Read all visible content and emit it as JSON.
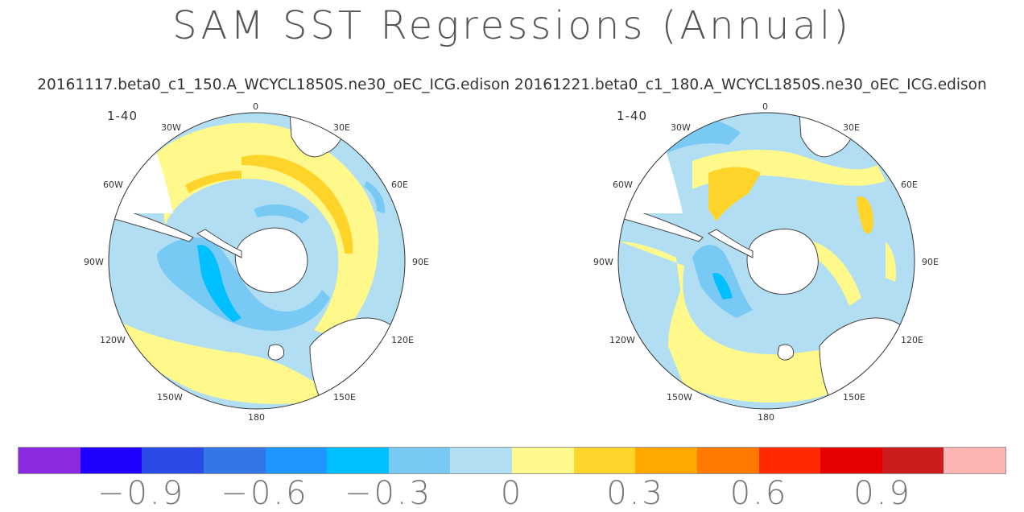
{
  "title": "SAM SST Regressions (Annual)",
  "subtitle": "20161117.beta0_c1_150.A_WCYCL1850S.ne30_oEC_ICG.edison 20161221.beta0_c1_180.A_WCYCL1850S.ne30_oEC_ICG.edison",
  "panels": [
    {
      "period": "1-40",
      "lon_labels": {
        "0": "0",
        "30E": "30E",
        "60E": "60E",
        "90E": "90E",
        "120E": "120E",
        "150E": "150E",
        "180": "180",
        "150W": "150W",
        "120W": "120W",
        "90W": "90W",
        "60W": "60W",
        "30W": "30W"
      }
    },
    {
      "period": "1-40",
      "lon_labels": {
        "0": "0",
        "30E": "30E",
        "60E": "60E",
        "90E": "90E",
        "120E": "120E",
        "150E": "150E",
        "180": "180",
        "150W": "150W",
        "120W": "120W",
        "90W": "90W",
        "60W": "60W",
        "30W": "30W"
      }
    }
  ],
  "colorbar": {
    "colors": [
      "#8a2be2",
      "#1e00ff",
      "#2c4be6",
      "#3376e6",
      "#1f96ff",
      "#00c0ff",
      "#78c9f4",
      "#b2def3",
      "#fff98c",
      "#ffd42a",
      "#ffa800",
      "#ff7a00",
      "#ff2a00",
      "#e60000",
      "#cc1b1b",
      "#ffb4b4"
    ],
    "tick_labels": [
      "-0.9",
      "-0.6",
      "-0.3",
      "0",
      "0.3",
      "0.6",
      "0.9"
    ]
  },
  "colors": {
    "weak_negative": "#b2def3",
    "moderate_negative": "#78c9f4",
    "strong_negative": "#00c0ff",
    "weak_positive": "#fff98c",
    "moderate_positive": "#ffd42a",
    "land": "#ffffff",
    "coast": "#444444"
  }
}
